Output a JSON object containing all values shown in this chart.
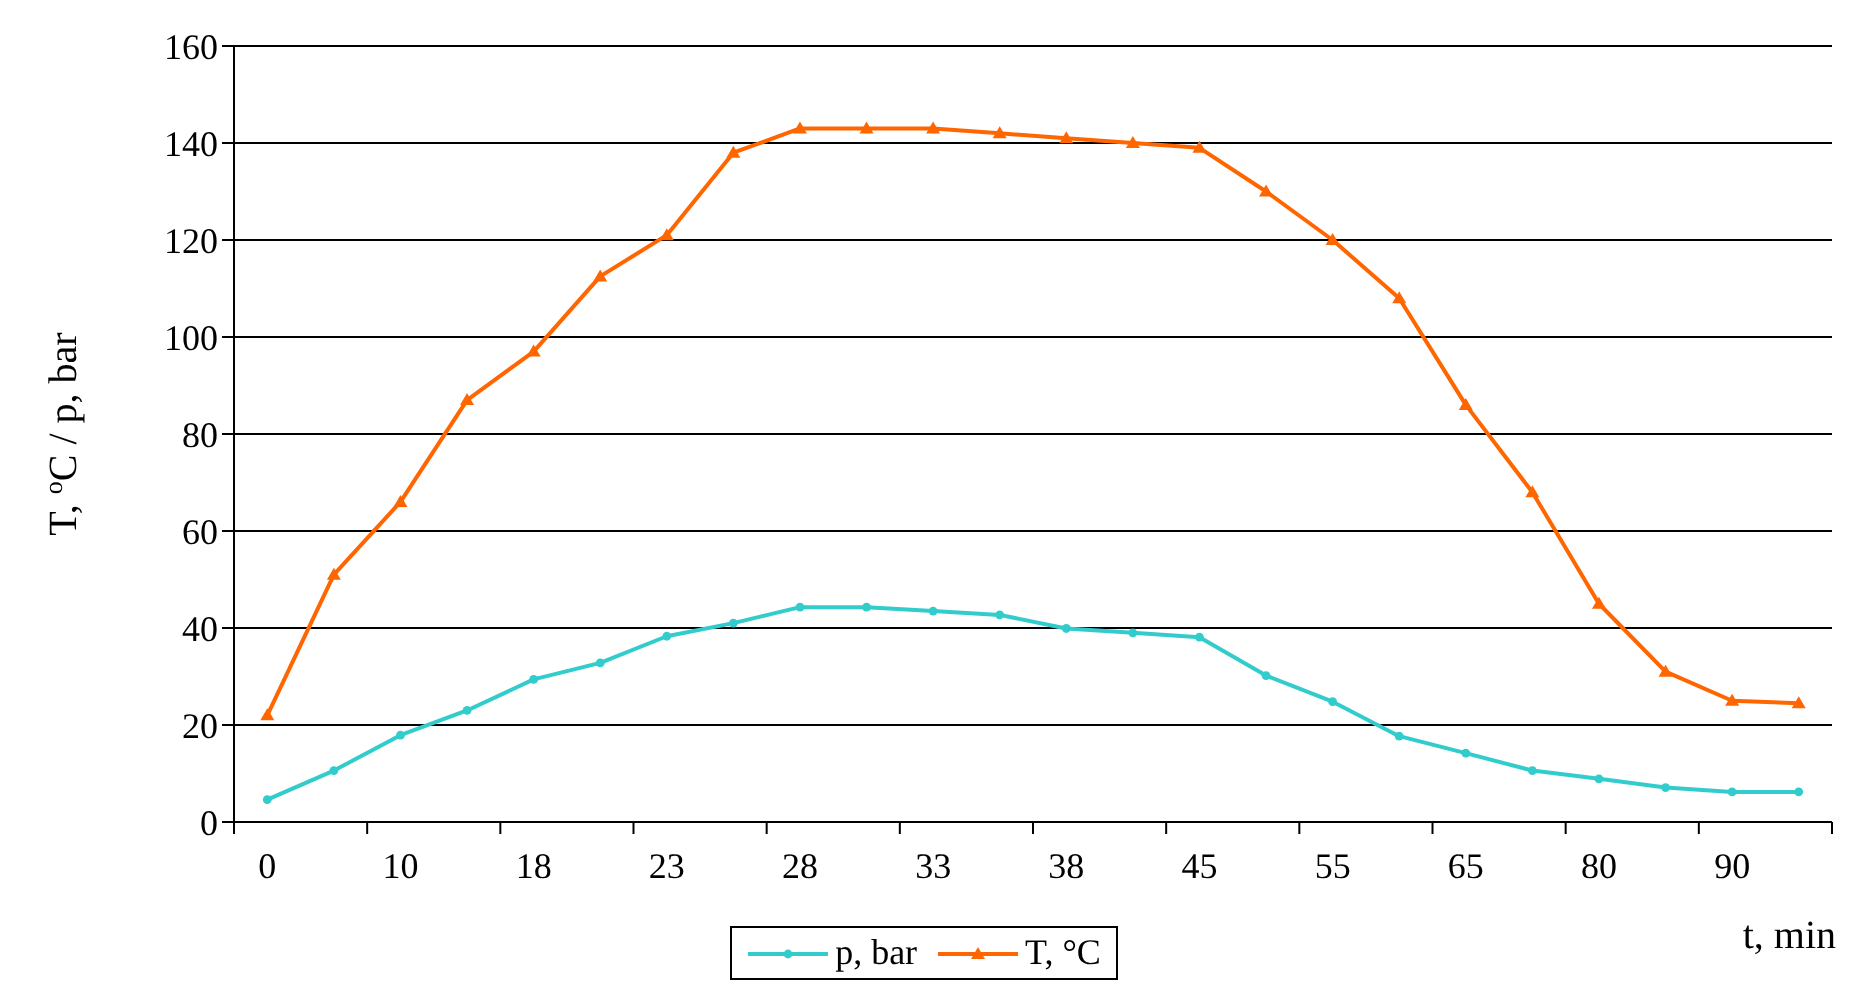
{
  "chart_data": {
    "type": "line",
    "ylabel": "T, $^{o}$C / p, bar",
    "xlabel": "t, min",
    "categories": [
      "0",
      null,
      "10",
      null,
      "18",
      null,
      "23",
      null,
      "28",
      null,
      "33",
      null,
      "38",
      null,
      "45",
      null,
      "55",
      null,
      "65",
      null,
      "80",
      null,
      "90",
      null
    ],
    "series": [
      {
        "name": "p, bar",
        "color": "#33cccc",
        "marker": "circle",
        "values": [
          4.6,
          10.6,
          17.9,
          23,
          29.4,
          32.8,
          38.3,
          41,
          44.3,
          44.3,
          43.5,
          42.7,
          39.9,
          39,
          38.1,
          30.2,
          24.8,
          17.7,
          14.2,
          10.6,
          8.9,
          7.1,
          6.2,
          6.2
        ]
      },
      {
        "name": "T, °C",
        "color": "#ff6600",
        "marker": "triangle",
        "values": [
          22,
          51,
          66,
          87,
          97,
          112.5,
          121,
          138,
          143,
          143,
          143,
          142,
          141,
          140,
          139,
          130,
          120,
          108,
          86,
          68,
          45,
          31,
          25,
          24.5
        ]
      }
    ],
    "ylim": [
      0,
      160
    ],
    "yticks": [
      0,
      20,
      40,
      60,
      80,
      100,
      120,
      140,
      160
    ],
    "grid": "y",
    "legend": "bottom",
    "line_style": "solid"
  }
}
